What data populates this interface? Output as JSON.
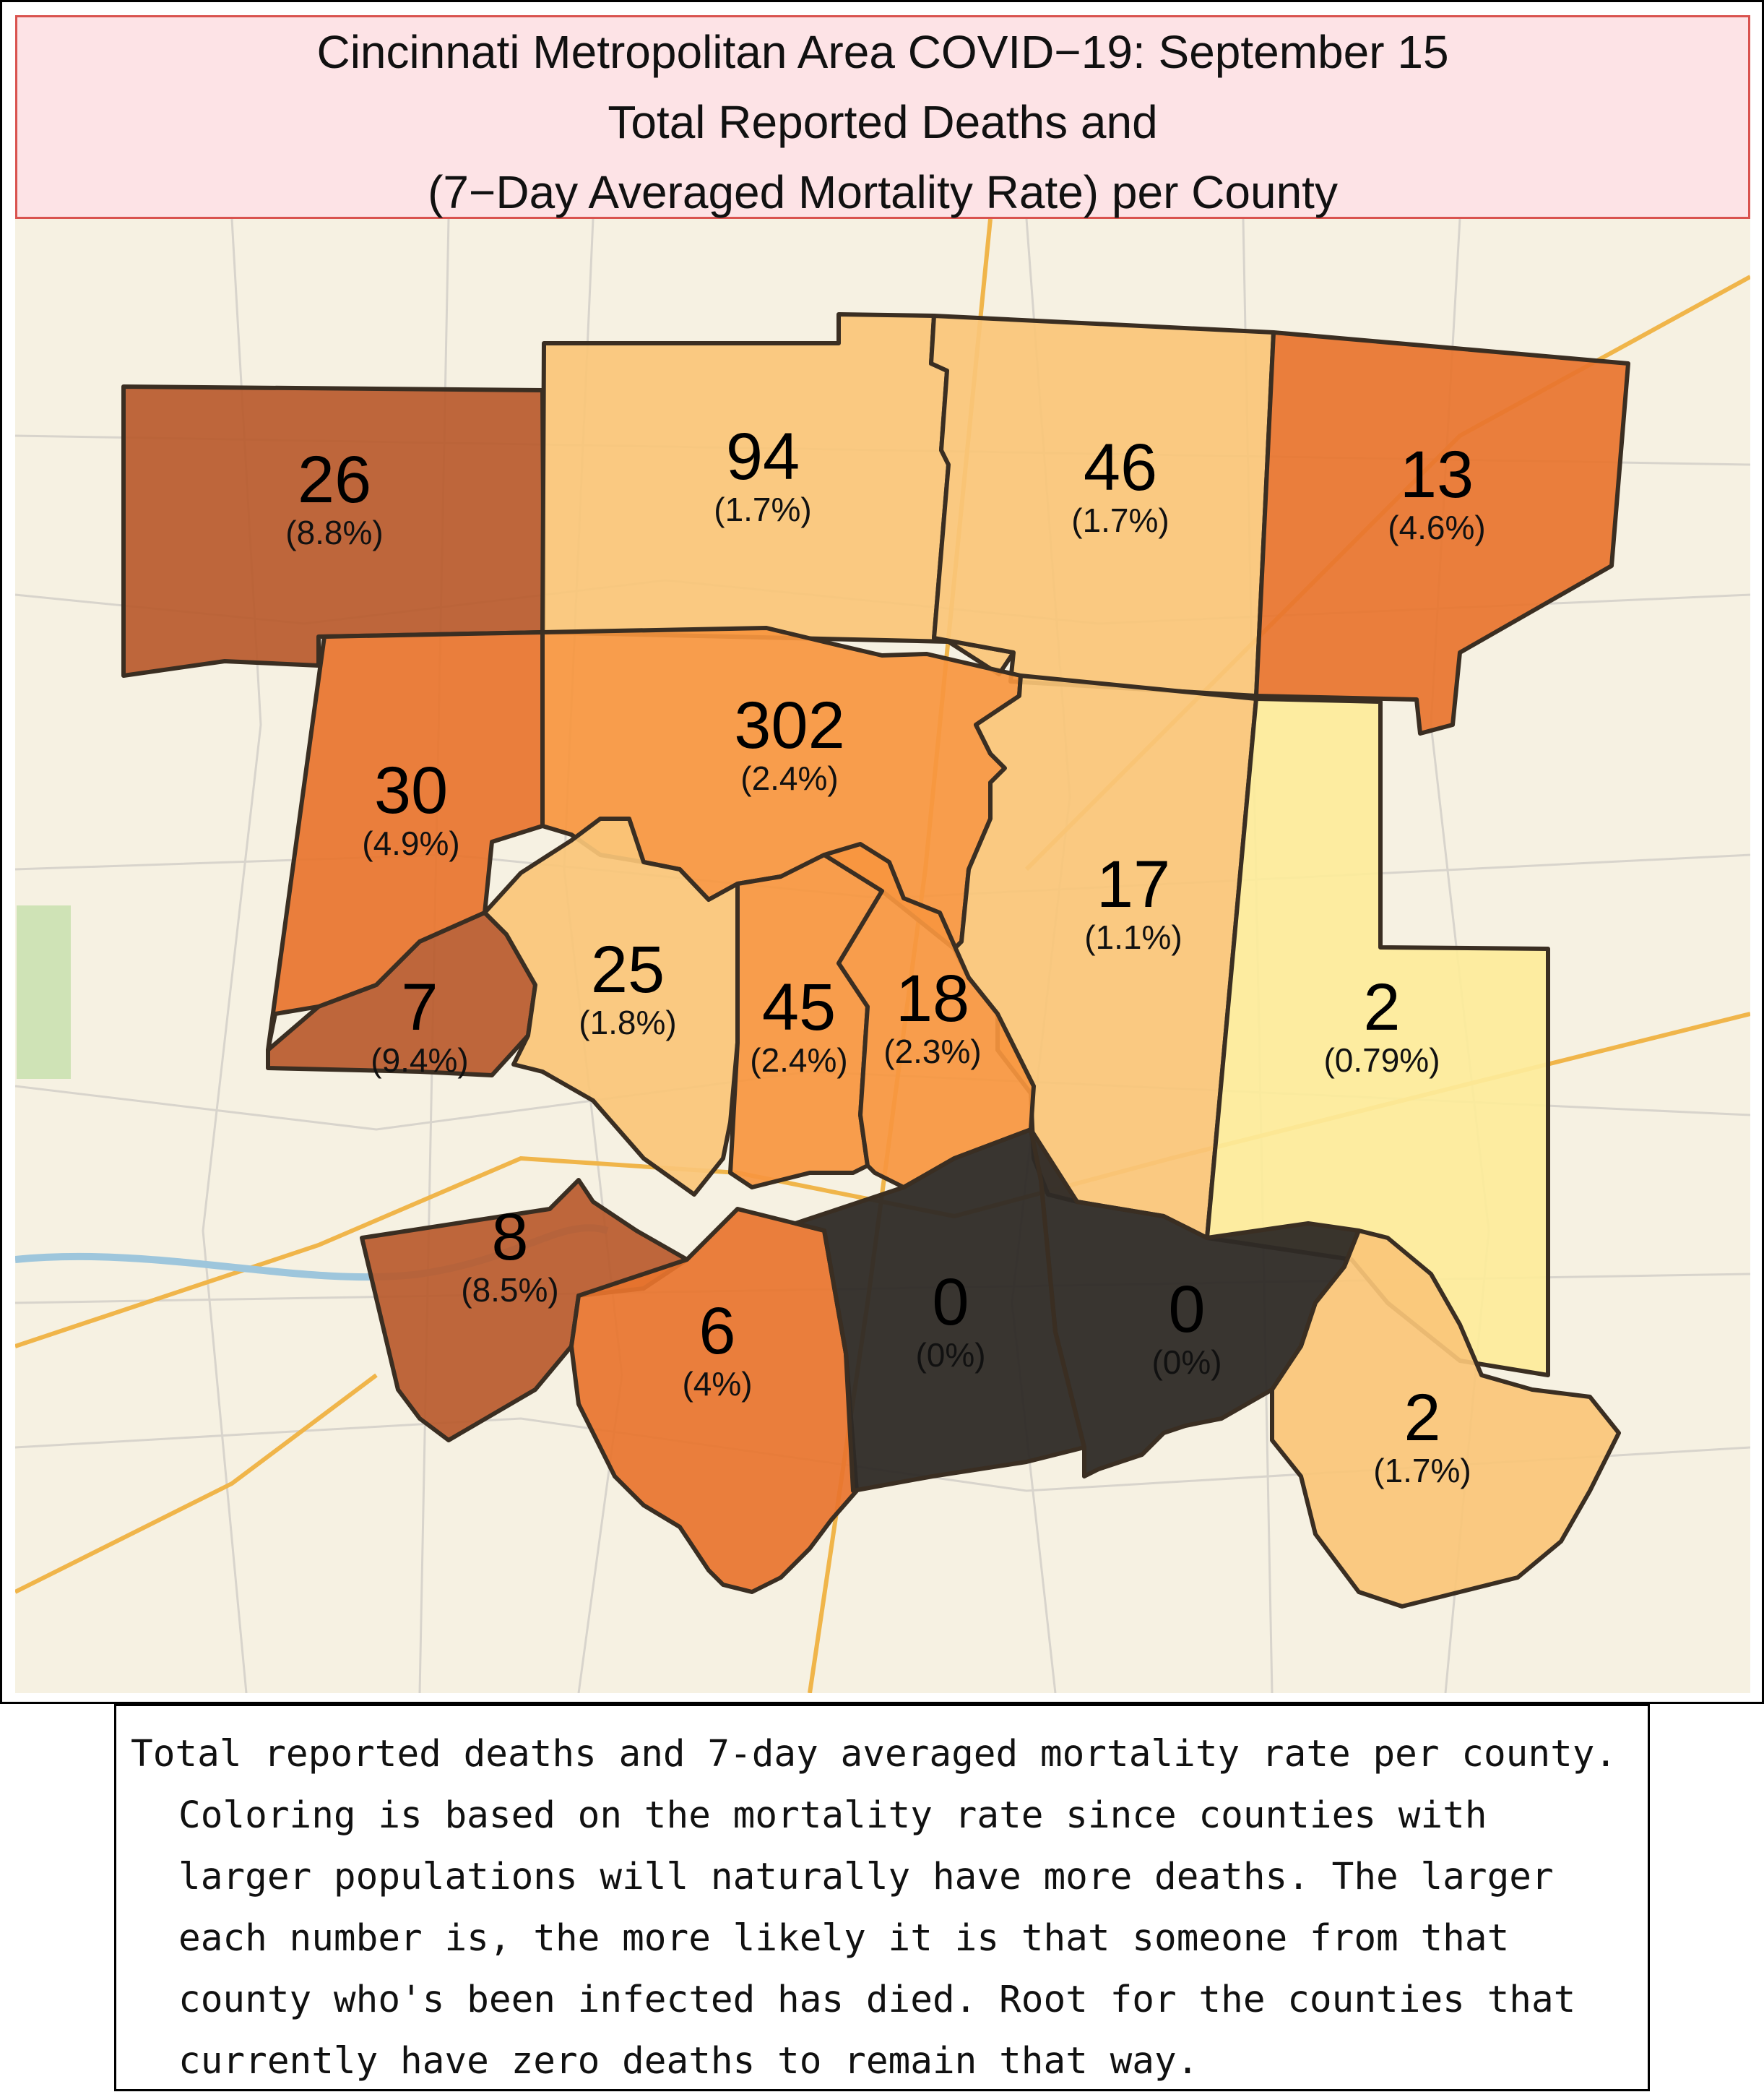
{
  "title": {
    "line1": "Cincinnati Metropolitan Area COVID−19: September 15",
    "line2": "Total Reported Deaths and",
    "line3": "(7−Day Averaged Mortality Rate) per County"
  },
  "colors": {
    "title_bg": "#fde3e6",
    "title_border": "#d9534f",
    "zero_rate": "#2e2a26",
    "rate_very_low": "#fdeb9a",
    "rate_low": "#fac678",
    "rate_mid": "#f7a35c",
    "rate_high": "#e8742e",
    "rate_very_high": "#b85a2c"
  },
  "counties": [
    {
      "id": "northwest",
      "deaths": "26",
      "rate": "(8.8%)",
      "rate_value": 8.8,
      "color": "#b85a2c"
    },
    {
      "id": "north-center",
      "deaths": "94",
      "rate": "(1.7%)",
      "rate_value": 1.7,
      "color": "#fac678"
    },
    {
      "id": "north-east-center",
      "deaths": "46",
      "rate": "(1.7%)",
      "rate_value": 1.7,
      "color": "#fac678"
    },
    {
      "id": "northeast",
      "deaths": "13",
      "rate": "(4.6%)",
      "rate_value": 4.6,
      "color": "#e8742e"
    },
    {
      "id": "west",
      "deaths": "30",
      "rate": "(4.9%)",
      "rate_value": 4.9,
      "color": "#e8742e"
    },
    {
      "id": "central",
      "deaths": "302",
      "rate": "(2.4%)",
      "rate_value": 2.4,
      "color": "#f7963f"
    },
    {
      "id": "east-center",
      "deaths": "17",
      "rate": "(1.1%)",
      "rate_value": 1.1,
      "color": "#fac678"
    },
    {
      "id": "east",
      "deaths": "2",
      "rate": "(0.79%)",
      "rate_value": 0.79,
      "color": "#fdeb9a"
    },
    {
      "id": "southwest-small",
      "deaths": "7",
      "rate": "(9.4%)",
      "rate_value": 9.4,
      "color": "#b85a2c"
    },
    {
      "id": "west-center",
      "deaths": "25",
      "rate": "(1.8%)",
      "rate_value": 1.8,
      "color": "#fac678"
    },
    {
      "id": "south-center-a",
      "deaths": "45",
      "rate": "(2.4%)",
      "rate_value": 2.4,
      "color": "#f7963f"
    },
    {
      "id": "south-center-b",
      "deaths": "18",
      "rate": "(2.3%)",
      "rate_value": 2.3,
      "color": "#f7963f"
    },
    {
      "id": "southwest",
      "deaths": "8",
      "rate": "(8.5%)",
      "rate_value": 8.5,
      "color": "#b85a2c"
    },
    {
      "id": "south",
      "deaths": "6",
      "rate": "(4%)",
      "rate_value": 4,
      "color": "#e8742e"
    },
    {
      "id": "south-zero-a",
      "deaths": "0",
      "rate": "(0%)",
      "rate_value": 0,
      "color": "#2e2a26"
    },
    {
      "id": "south-zero-b",
      "deaths": "0",
      "rate": "(0%)",
      "rate_value": 0,
      "color": "#2e2a26"
    },
    {
      "id": "southeast",
      "deaths": "2",
      "rate": "(1.7%)",
      "rate_value": 1.7,
      "color": "#fac678"
    }
  ],
  "caption": {
    "text": "Total reported deaths and 7-day averaged mortality rate per county. Coloring is based on the mortality rate since counties with larger populations will naturally have more deaths. The larger each number is, the more likely it is that someone from that county who's been infected has died. Root for the counties that currently have zero deaths to remain that way."
  }
}
